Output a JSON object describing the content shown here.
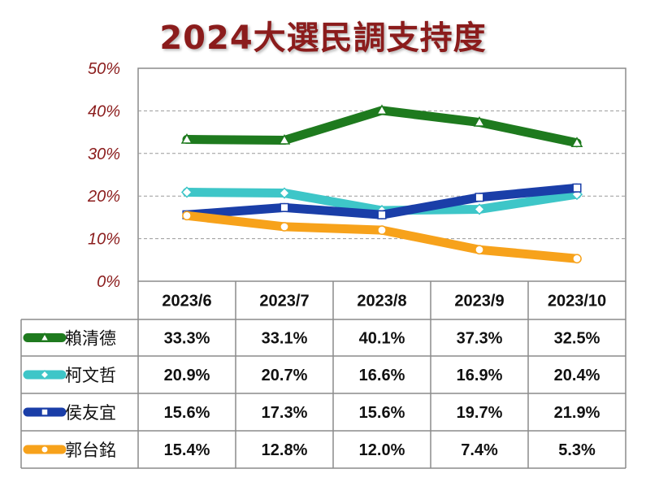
{
  "chart_data": {
    "type": "line",
    "title": "2024大選民調支持度",
    "categories": [
      "2023/6",
      "2023/7",
      "2023/8",
      "2023/9",
      "2023/10"
    ],
    "ylim": [
      0,
      50
    ],
    "yticks": [
      "0%",
      "10%",
      "20%",
      "30%",
      "40%",
      "50%"
    ],
    "grid": true,
    "series": [
      {
        "name": "賴清德",
        "color": "#1e7a1e",
        "marker": "triangle",
        "values": [
          33.3,
          33.1,
          40.1,
          37.3,
          32.5
        ],
        "labels": [
          "33.3%",
          "33.1%",
          "40.1%",
          "37.3%",
          "32.5%"
        ]
      },
      {
        "name": "柯文哲",
        "color": "#3ec6c8",
        "marker": "diamond",
        "values": [
          20.9,
          20.7,
          16.6,
          16.9,
          20.4
        ],
        "labels": [
          "20.9%",
          "20.7%",
          "16.6%",
          "16.9%",
          "20.4%"
        ]
      },
      {
        "name": "侯友宜",
        "color": "#1a3ea8",
        "marker": "square",
        "values": [
          15.6,
          17.3,
          15.6,
          19.7,
          21.9
        ],
        "labels": [
          "15.6%",
          "17.3%",
          "15.6%",
          "19.7%",
          "21.9%"
        ]
      },
      {
        "name": "郭台銘",
        "color": "#f7a21b",
        "marker": "circle",
        "values": [
          15.4,
          12.8,
          12.0,
          7.4,
          5.3
        ],
        "labels": [
          "15.4%",
          "12.8%",
          "12.0%",
          "7.4%",
          "5.3%"
        ]
      }
    ]
  }
}
